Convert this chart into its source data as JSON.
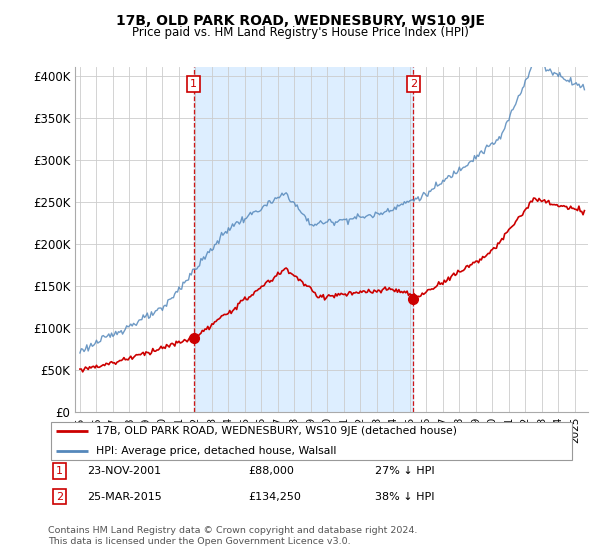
{
  "title": "17B, OLD PARK ROAD, WEDNESBURY, WS10 9JE",
  "subtitle": "Price paid vs. HM Land Registry's House Price Index (HPI)",
  "ylabel_values": [
    "£0",
    "£50K",
    "£100K",
    "£150K",
    "£200K",
    "£250K",
    "£300K",
    "£350K",
    "£400K"
  ],
  "ylim": [
    0,
    410000
  ],
  "yticks": [
    0,
    50000,
    100000,
    150000,
    200000,
    250000,
    300000,
    350000,
    400000
  ],
  "xlim_start": 1994.7,
  "xlim_end": 2025.8,
  "red_line_color": "#cc0000",
  "blue_line_color": "#5588bb",
  "shade_color": "#ddeeff",
  "vline_color": "#cc0000",
  "marker1_x": 2001.89,
  "marker1_y": 88000,
  "marker2_x": 2015.22,
  "marker2_y": 134250,
  "annotation1_label": "1",
  "annotation2_label": "2",
  "legend_red": "17B, OLD PARK ROAD, WEDNESBURY, WS10 9JE (detached house)",
  "legend_blue": "HPI: Average price, detached house, Walsall",
  "table_row1": [
    "1",
    "23-NOV-2001",
    "£88,000",
    "27% ↓ HPI"
  ],
  "table_row2": [
    "2",
    "25-MAR-2015",
    "£134,250",
    "38% ↓ HPI"
  ],
  "footnote": "Contains HM Land Registry data © Crown copyright and database right 2024.\nThis data is licensed under the Open Government Licence v3.0.",
  "bg_color": "#ffffff",
  "grid_color": "#cccccc",
  "title_fontsize": 10,
  "subtitle_fontsize": 9
}
